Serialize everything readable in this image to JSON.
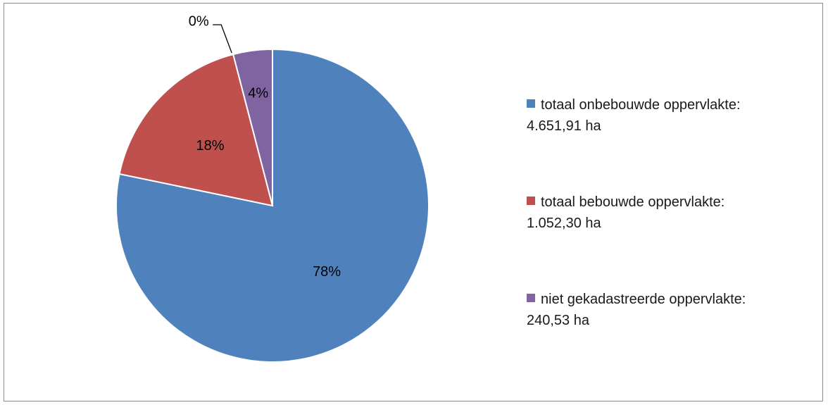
{
  "chart_data": {
    "type": "pie",
    "title": "",
    "slices": [
      {
        "name": "totaal onbebouwde oppervlakte",
        "value": 4651.91,
        "unit": "ha",
        "label": "78%",
        "legend_line1": "totaal onbebouwde oppervlakte:",
        "legend_line2": "4.651,91 ha",
        "color": "#4f81bd"
      },
      {
        "name": "totaal bebouwde oppervlakte",
        "value": 1052.3,
        "unit": "ha",
        "label": "18%",
        "legend_line1": "totaal bebouwde oppervlakte:",
        "legend_line2": "1.052,30 ha",
        "color": "#c0504d"
      },
      {
        "name": "",
        "value": 0,
        "unit": "",
        "label": "0%",
        "legend_line1": "",
        "legend_line2": "",
        "color": "#9bbb59"
      },
      {
        "name": "niet gekadastreerde oppervlakte",
        "value": 240.53,
        "unit": "ha",
        "label": "4%",
        "legend_line1": "niet gekadastreerde oppervlakte:",
        "legend_line2": "240,53 ha",
        "color": "#8064a2"
      }
    ],
    "start_angle_deg": 0,
    "direction": "clockwise",
    "legend_position": "right"
  }
}
